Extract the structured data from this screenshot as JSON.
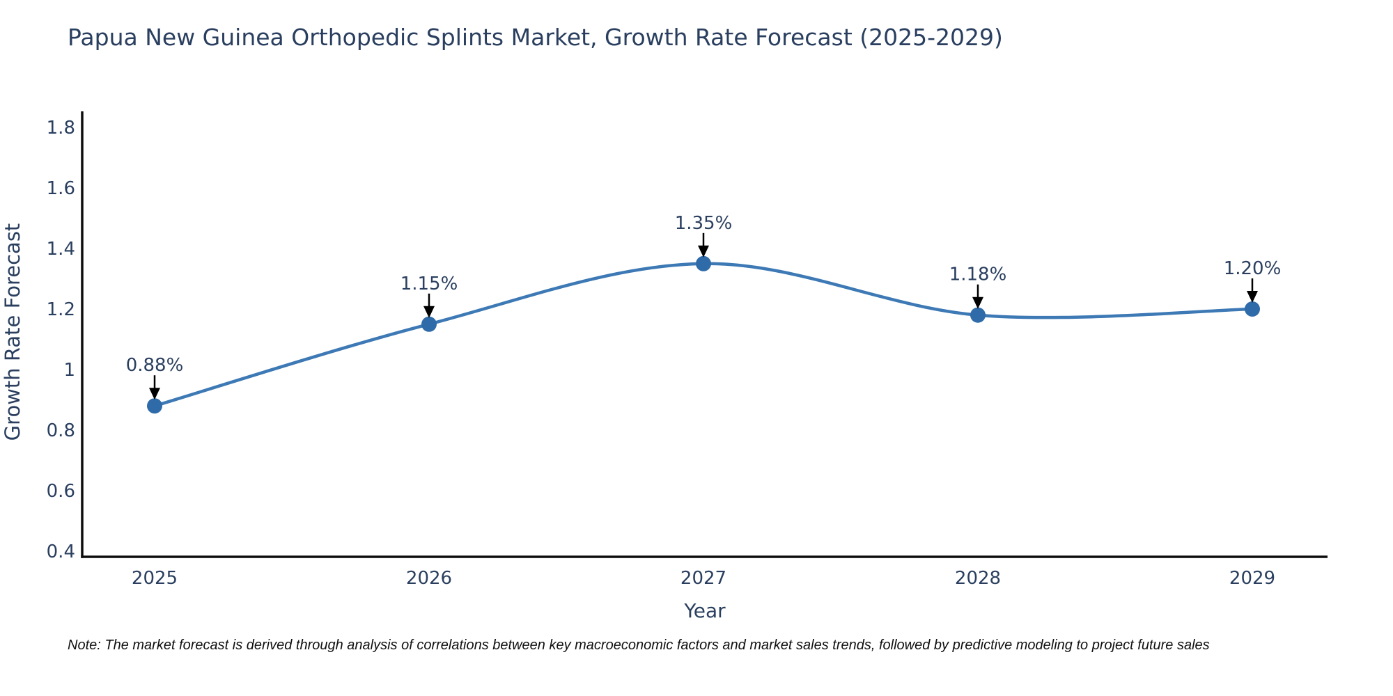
{
  "title": "Papua New Guinea Orthopedic Splints Market, Growth Rate Forecast (2025-2029)",
  "note": "Note: The market forecast is derived through analysis of correlations between key macroeconomic factors and market sales trends, followed by predictive modeling to project future sales",
  "colors": {
    "background": "#ffffff",
    "title_text": "#2a3f5f",
    "tick_text": "#2a3f5f",
    "axis_line": "#0d0d0d",
    "line": "#3d79b5",
    "marker": "#2f6ba8",
    "annotation_text": "#2a3f5f",
    "arrow": "#000000",
    "note_text": "#101010"
  },
  "chart_data": {
    "type": "line",
    "line_shape": "spline",
    "x": [
      "2025",
      "2026",
      "2027",
      "2028",
      "2029"
    ],
    "values": [
      0.88,
      1.15,
      1.35,
      1.18,
      1.2
    ],
    "point_labels": [
      "0.88%",
      "1.15%",
      "1.35%",
      "1.18%",
      "1.20%"
    ],
    "title": "Papua New Guinea Orthopedic Splints Market, Growth Rate Forecast (2025-2029)",
    "xlabel": "Year",
    "ylabel": "Growth Rate Forecast",
    "ylim": [
      0.4,
      1.8
    ],
    "yticks": [
      0.4,
      0.6,
      0.8,
      1,
      1.2,
      1.4,
      1.6,
      1.8
    ],
    "grid": false,
    "legend": "none",
    "annotations": "black arrows pointing down onto each marker with percent labels above"
  }
}
